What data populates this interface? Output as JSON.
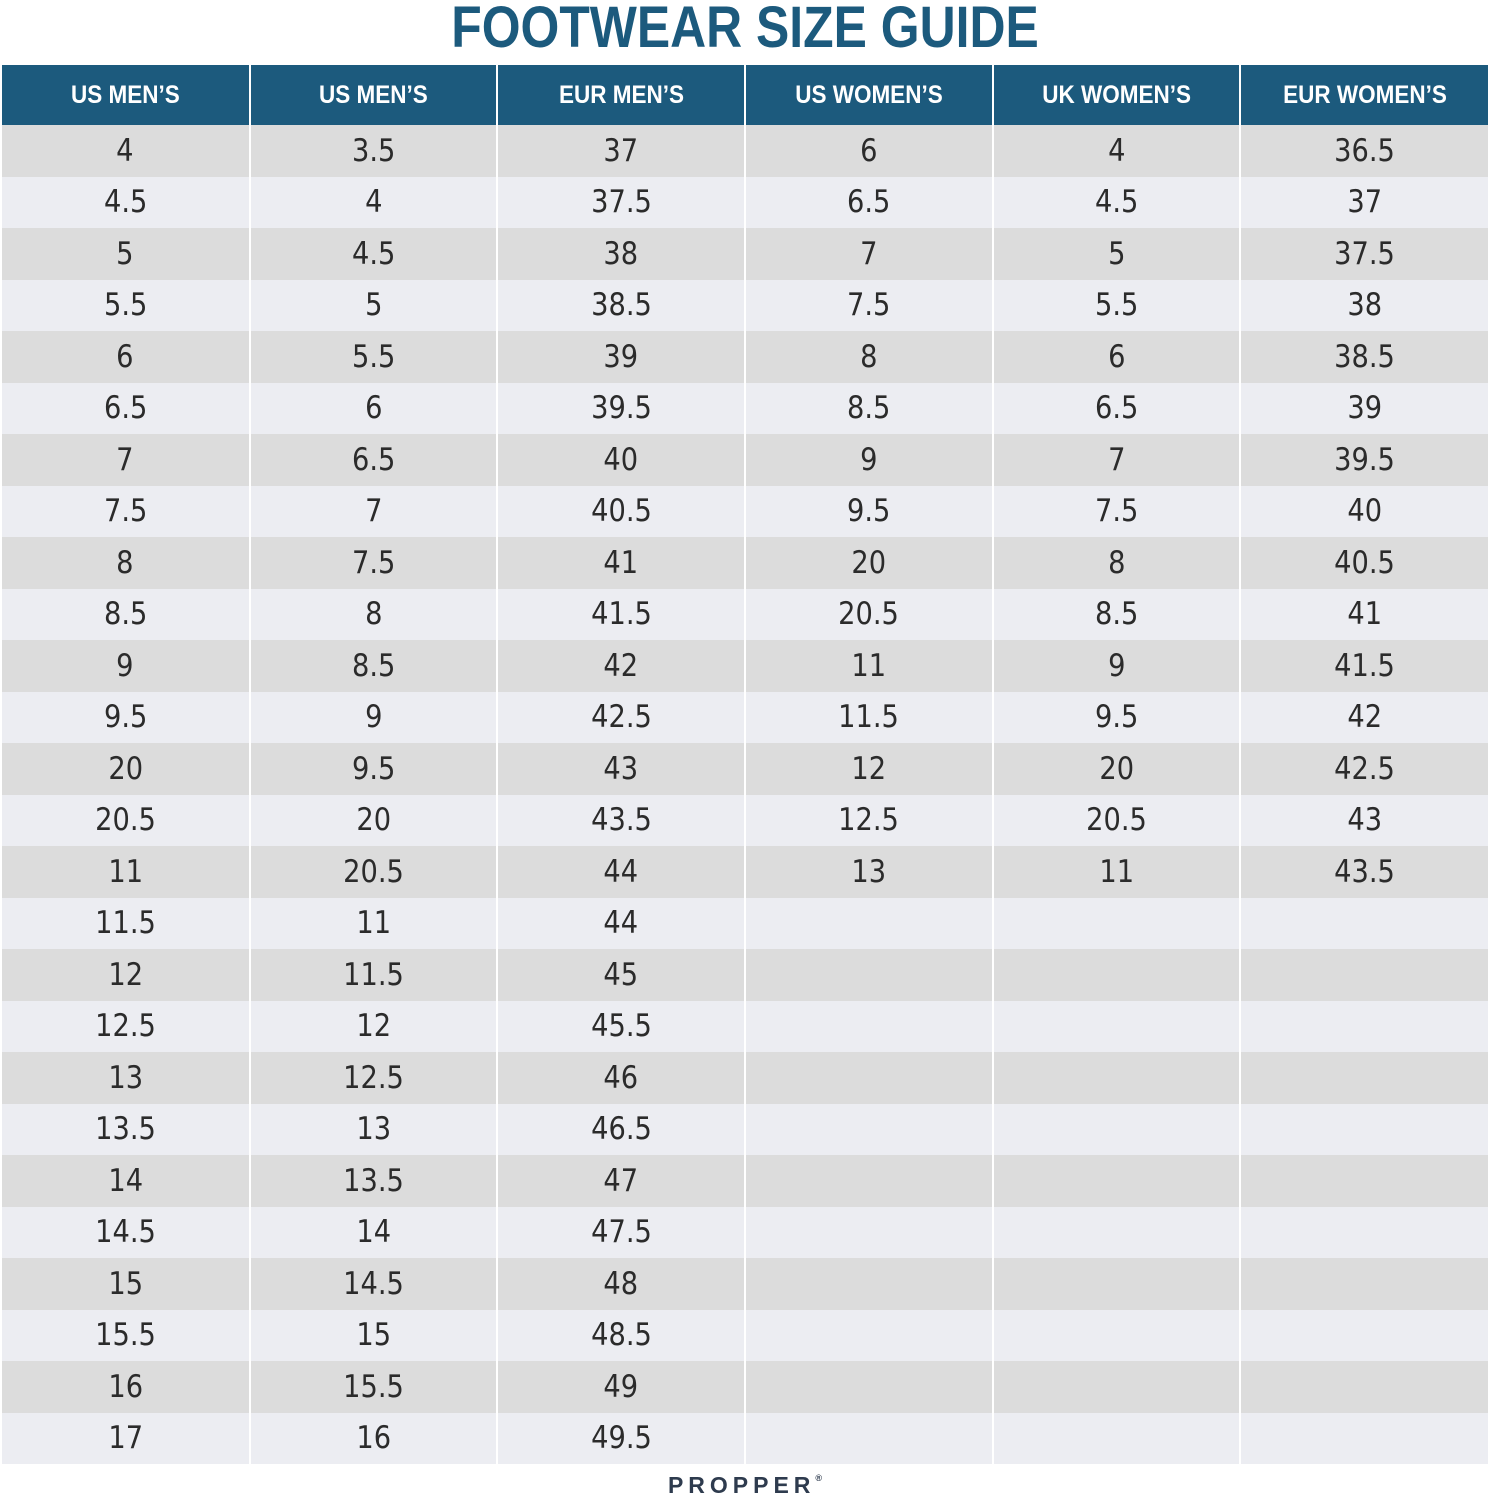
{
  "title": "FOOTWEAR SIZE GUIDE",
  "brand": "PROPPER",
  "brand_mark": "®",
  "colors": {
    "header_bg": "#1c5a7d",
    "title": "#1c5a7d",
    "row_odd": "#dcdcdc",
    "row_even": "#ecedf2"
  },
  "table": {
    "headers": [
      "US MEN’S",
      "US MEN’S",
      "EUR MEN’S",
      "US WOMEN’S",
      "UK WOMEN’S",
      "EUR WOMEN’S"
    ],
    "rows": [
      [
        "4",
        "3.5",
        "37",
        "6",
        "4",
        "36.5"
      ],
      [
        "4.5",
        "4",
        "37.5",
        "6.5",
        "4.5",
        "37"
      ],
      [
        "5",
        "4.5",
        "38",
        "7",
        "5",
        "37.5"
      ],
      [
        "5.5",
        "5",
        "38.5",
        "7.5",
        "5.5",
        "38"
      ],
      [
        "6",
        "5.5",
        "39",
        "8",
        "6",
        "38.5"
      ],
      [
        "6.5",
        "6",
        "39.5",
        "8.5",
        "6.5",
        "39"
      ],
      [
        "7",
        "6.5",
        "40",
        "9",
        "7",
        "39.5"
      ],
      [
        "7.5",
        "7",
        "40.5",
        "9.5",
        "7.5",
        "40"
      ],
      [
        "8",
        "7.5",
        "41",
        "20",
        "8",
        "40.5"
      ],
      [
        "8.5",
        "8",
        "41.5",
        "20.5",
        "8.5",
        "41"
      ],
      [
        "9",
        "8.5",
        "42",
        "11",
        "9",
        "41.5"
      ],
      [
        "9.5",
        "9",
        "42.5",
        "11.5",
        "9.5",
        "42"
      ],
      [
        "20",
        "9.5",
        "43",
        "12",
        "20",
        "42.5"
      ],
      [
        "20.5",
        "20",
        "43.5",
        "12.5",
        "20.5",
        "43"
      ],
      [
        "11",
        "20.5",
        "44",
        "13",
        "11",
        "43.5"
      ],
      [
        "11.5",
        "11",
        "44",
        "",
        "",
        ""
      ],
      [
        "12",
        "11.5",
        "45",
        "",
        "",
        ""
      ],
      [
        "12.5",
        "12",
        "45.5",
        "",
        "",
        ""
      ],
      [
        "13",
        "12.5",
        "46",
        "",
        "",
        ""
      ],
      [
        "13.5",
        "13",
        "46.5",
        "",
        "",
        ""
      ],
      [
        "14",
        "13.5",
        "47",
        "",
        "",
        ""
      ],
      [
        "14.5",
        "14",
        "47.5",
        "",
        "",
        ""
      ],
      [
        "15",
        "14.5",
        "48",
        "",
        "",
        ""
      ],
      [
        "15.5",
        "15",
        "48.5",
        "",
        "",
        ""
      ],
      [
        "16",
        "15.5",
        "49",
        "",
        "",
        ""
      ],
      [
        "17",
        "16",
        "49.5",
        "",
        "",
        ""
      ]
    ]
  }
}
